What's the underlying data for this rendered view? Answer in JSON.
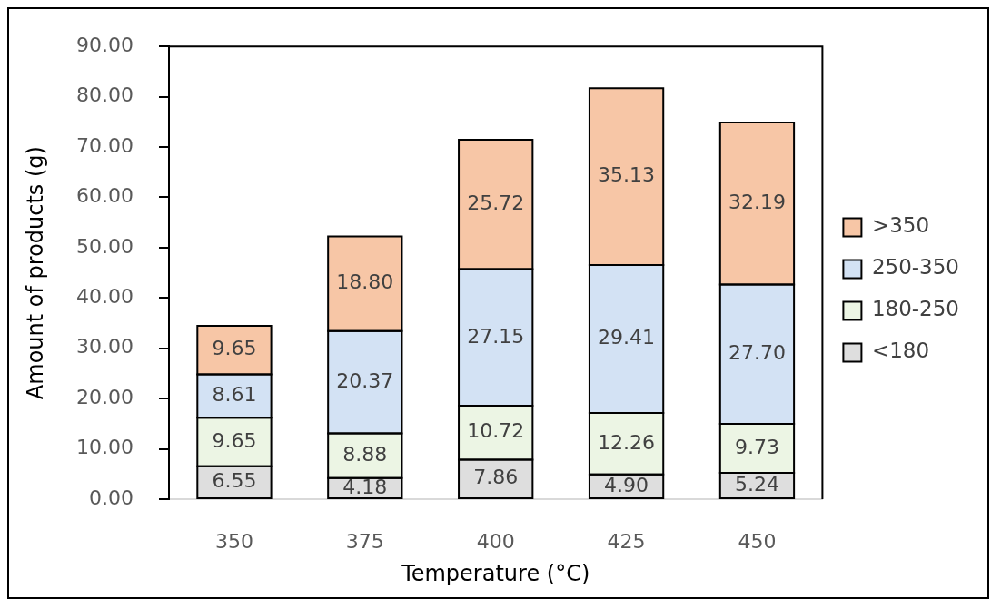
{
  "chart_data": {
    "type": "bar",
    "stacked": true,
    "legend": "right",
    "categories": [
      "350",
      "375",
      "400",
      "425",
      "450"
    ],
    "xlabel": "Temperature (°C)",
    "ylabel": "Amount of products (g)",
    "ylim": [
      0,
      90
    ],
    "yticks": [
      {
        "value": 0,
        "label": "0.00"
      },
      {
        "value": 10,
        "label": "10.00"
      },
      {
        "value": 20,
        "label": "20.00"
      },
      {
        "value": 30,
        "label": "30.00"
      },
      {
        "value": 40,
        "label": "40.00"
      },
      {
        "value": 50,
        "label": "50.00"
      },
      {
        "value": 60,
        "label": "60.00"
      },
      {
        "value": 70,
        "label": "70.00"
      },
      {
        "value": 80,
        "label": "80.00"
      },
      {
        "value": 90,
        "label": "90.00"
      }
    ],
    "series": [
      {
        "name": "<180",
        "color": "#dedede",
        "values": [
          6.55,
          4.18,
          7.86,
          4.9,
          5.24
        ],
        "value_labels": [
          "6.55",
          "4.18",
          "7.86",
          "4.90",
          "5.24"
        ]
      },
      {
        "name": "180-250",
        "color": "#ecf5e4",
        "values": [
          9.65,
          8.88,
          10.72,
          12.26,
          9.73
        ],
        "value_labels": [
          "9.65",
          "8.88",
          "10.72",
          "12.26",
          "9.73"
        ]
      },
      {
        "name": "250-350",
        "color": "#d3e2f4",
        "values": [
          8.61,
          20.37,
          27.15,
          29.41,
          27.7
        ],
        "value_labels": [
          "8.61",
          "20.37",
          "27.15",
          "29.41",
          "27.70"
        ]
      },
      {
        "name": ">350",
        "color": "#f7c6a6",
        "values": [
          9.65,
          18.8,
          25.72,
          35.13,
          32.19
        ],
        "value_labels": [
          "9.65",
          "18.80",
          "25.72",
          "35.13",
          "32.19"
        ]
      }
    ]
  }
}
